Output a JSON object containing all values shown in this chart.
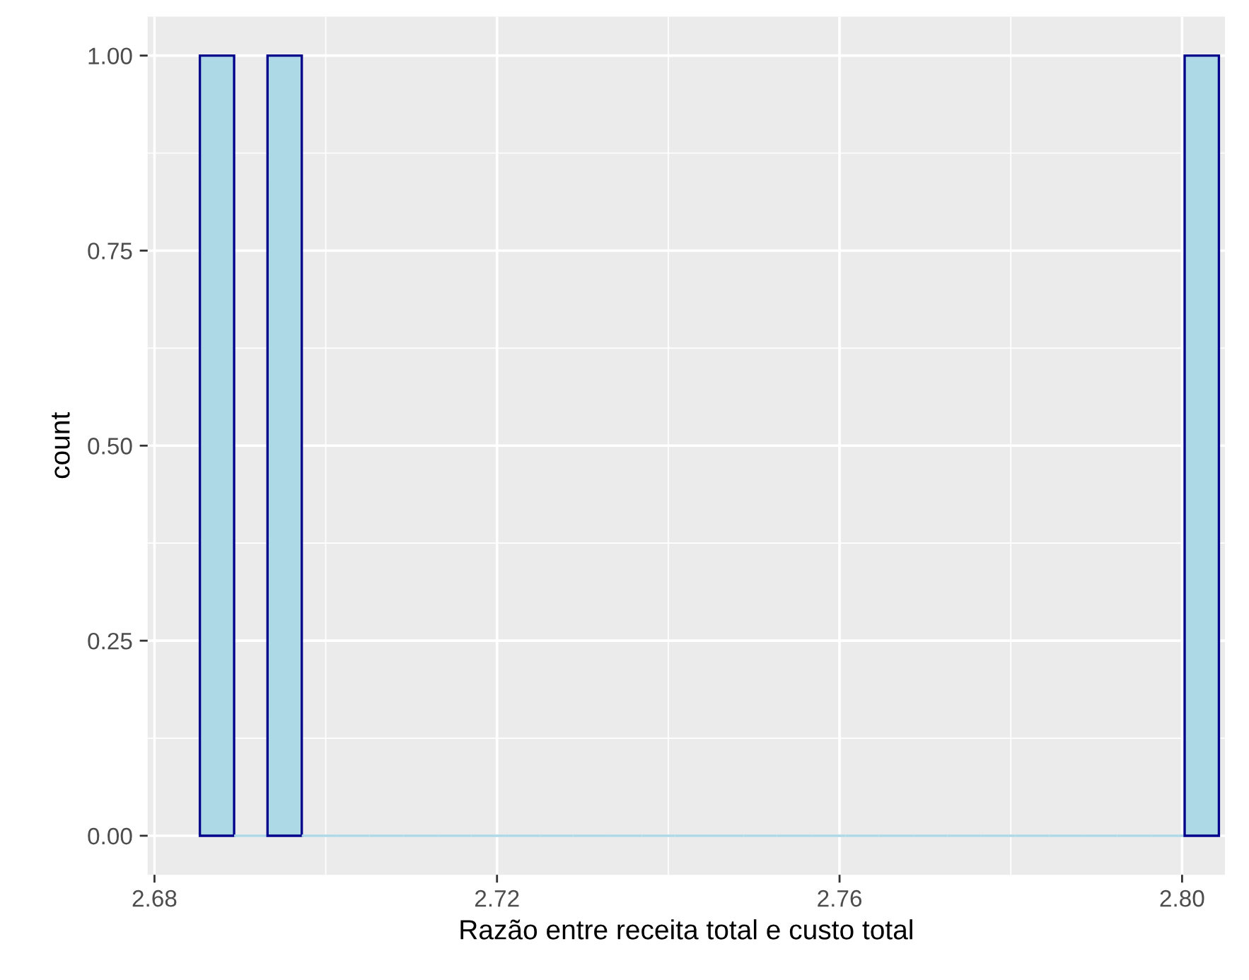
{
  "chart_data": {
    "type": "histogram",
    "xlabel": "Razão entre receita total e custo total",
    "ylabel": "count",
    "bins": [
      2.6853,
      2.6893,
      2.6932,
      2.6972,
      2.7012,
      2.7051,
      2.7091,
      2.7131,
      2.717,
      2.721,
      2.725,
      2.7289,
      2.7329,
      2.7369,
      2.7408,
      2.7448,
      2.7488,
      2.7527,
      2.7567,
      2.7607,
      2.7646,
      2.7686,
      2.7726,
      2.7765,
      2.7805,
      2.7845,
      2.7884,
      2.7924,
      2.7964,
      2.8003,
      2.8043
    ],
    "values": [
      1,
      0,
      1,
      0,
      0,
      0,
      0,
      0,
      0,
      0,
      0,
      0,
      0,
      0,
      0,
      0,
      0,
      0,
      0,
      0,
      0,
      0,
      0,
      0,
      0,
      0,
      0,
      0,
      0,
      1
    ],
    "color": "#add8e6",
    "xlim": [
      2.6792,
      2.805
    ],
    "ylim": [
      -0.05,
      1.05
    ],
    "xticks": [
      2.68,
      2.72,
      2.76,
      {
        "value": 2.8,
        "label": "2.80"
      }
    ],
    "yticks": [
      {
        "value": 0,
        "label": "0.00"
      },
      {
        "value": 0.25,
        "label": "0.25"
      },
      {
        "value": 0.5,
        "label": "0.50"
      },
      {
        "value": 0.75,
        "label": "0.75"
      },
      {
        "value": 1,
        "label": "1.00"
      }
    ],
    "grid": true
  }
}
